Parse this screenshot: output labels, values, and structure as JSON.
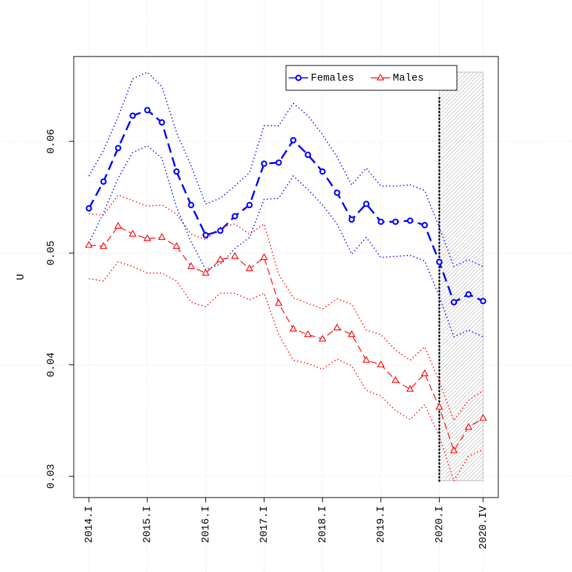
{
  "chart_data": {
    "type": "line",
    "ylabel": "U",
    "categories": [
      "2014.I",
      null,
      null,
      null,
      "2015.I",
      null,
      null,
      null,
      "2016.I",
      null,
      null,
      null,
      "2017.I",
      null,
      null,
      null,
      "2018.I",
      null,
      null,
      null,
      "2019.I",
      null,
      null,
      null,
      "2020.I",
      null,
      null,
      "2020.IV"
    ],
    "ylim": [
      0.0281,
      0.0676
    ],
    "yticks": [
      0.03,
      0.04,
      0.05,
      0.06
    ],
    "grid": true,
    "legend_position": "top",
    "series": [
      {
        "name": "Females",
        "color": "#0000ff",
        "marker": "circle",
        "values": [
          0.054,
          0.0564,
          0.0594,
          0.0623,
          0.0628,
          0.0617,
          0.0573,
          0.0543,
          0.0516,
          0.052,
          0.0533,
          0.0543,
          0.058,
          0.0581,
          0.0601,
          0.0588,
          0.0573,
          0.0554,
          0.053,
          0.0544,
          0.0528,
          0.0528,
          0.0529,
          0.0525,
          0.0492,
          0.0456,
          0.0463,
          0.0457
        ],
        "upper": [
          0.0569,
          0.0592,
          0.0622,
          0.0656,
          0.0662,
          0.0649,
          0.0608,
          0.0578,
          0.0544,
          0.0549,
          0.056,
          0.0572,
          0.0614,
          0.0614,
          0.0634,
          0.0623,
          0.0606,
          0.0586,
          0.0561,
          0.0576,
          0.056,
          0.056,
          0.0561,
          0.0556,
          0.0523,
          0.0488,
          0.0494,
          0.0488
        ],
        "lower": [
          0.0509,
          0.0536,
          0.0567,
          0.059,
          0.0596,
          0.0585,
          0.0541,
          0.051,
          0.0485,
          0.049,
          0.0504,
          0.0514,
          0.0548,
          0.0549,
          0.0569,
          0.0557,
          0.0543,
          0.0526,
          0.0499,
          0.0514,
          0.0496,
          0.0497,
          0.0498,
          0.0493,
          0.0461,
          0.0425,
          0.0431,
          0.0425
        ]
      },
      {
        "name": "Males",
        "color": "#ff0000",
        "marker": "triangle",
        "values": [
          0.0507,
          0.0506,
          0.0524,
          0.0517,
          0.0513,
          0.0514,
          0.0506,
          0.0488,
          0.0482,
          0.0494,
          0.0497,
          0.0486,
          0.0496,
          0.0455,
          0.0432,
          0.0427,
          0.0423,
          0.0433,
          0.0427,
          0.0404,
          0.04,
          0.0386,
          0.0378,
          0.0392,
          0.0362,
          0.0323,
          0.0344,
          0.0352
        ],
        "upper": [
          0.0535,
          0.0534,
          0.0552,
          0.0547,
          0.0542,
          0.0543,
          0.0535,
          0.0517,
          0.0512,
          0.0523,
          0.0526,
          0.0517,
          0.0526,
          0.0481,
          0.046,
          0.0455,
          0.045,
          0.0459,
          0.0454,
          0.0431,
          0.0427,
          0.0413,
          0.0404,
          0.0416,
          0.0385,
          0.035,
          0.0368,
          0.0377
        ],
        "lower": [
          0.0477,
          0.0475,
          0.0492,
          0.0488,
          0.0482,
          0.0482,
          0.0475,
          0.0456,
          0.0452,
          0.0464,
          0.0464,
          0.0458,
          0.0464,
          0.0427,
          0.0404,
          0.0401,
          0.0396,
          0.0405,
          0.0399,
          0.0377,
          0.0372,
          0.0359,
          0.0351,
          0.0364,
          0.0336,
          0.0296,
          0.0318,
          0.0324
        ]
      }
    ],
    "shade": {
      "x0": 24,
      "x1": 27,
      "y0": 0.0296,
      "y1": 0.0662,
      "color": "#bbbbbb"
    }
  }
}
